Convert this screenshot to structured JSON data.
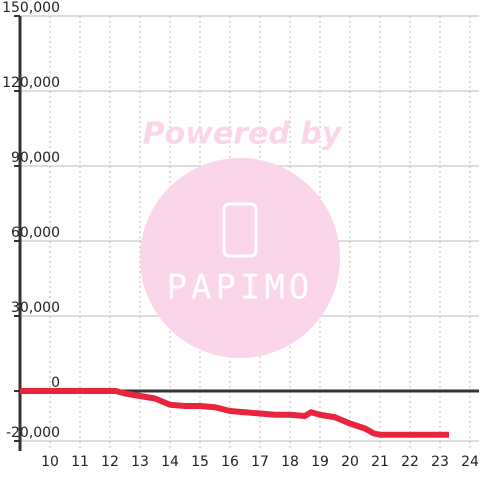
{
  "chart_data": {
    "type": "line",
    "watermark": {
      "line1": "Powered by",
      "line2": "PAPIMO"
    },
    "xlim": [
      9,
      24.3
    ],
    "xticks": [
      10,
      11,
      12,
      13,
      14,
      15,
      16,
      17,
      18,
      19,
      20,
      21,
      22,
      23,
      24
    ],
    "ylim": [
      -24000,
      150000
    ],
    "yticks": [
      {
        "value": -20000,
        "label": "-20,000"
      },
      0,
      {
        "value": 30000,
        "label": "30,000"
      },
      {
        "value": 60000,
        "label": "60,000"
      },
      {
        "value": 90000,
        "label": "90,000"
      },
      {
        "value": 120000,
        "label": "120,000"
      },
      {
        "value": 150000,
        "label": "150,000"
      }
    ],
    "grid": true,
    "series": [
      {
        "color": "#e8253c",
        "x": [
          9,
          12.2,
          12.5,
          13,
          13.5,
          14,
          14.5,
          15,
          15.5,
          16,
          16.5,
          17,
          17.5,
          18,
          18.5,
          18.7,
          19,
          19.5,
          20,
          20.5,
          20.8,
          21,
          21.5,
          22,
          22.5,
          23,
          23.3
        ],
        "values": [
          0,
          0,
          -1000,
          -2000,
          -3000,
          -5500,
          -6000,
          -6000,
          -6500,
          -8000,
          -8500,
          -9000,
          -9500,
          -9500,
          -10000,
          -8500,
          -9500,
          -10500,
          -13000,
          -15000,
          -17000,
          -17500,
          -17500,
          -17500,
          -17500,
          -17500,
          -17500
        ]
      }
    ]
  }
}
